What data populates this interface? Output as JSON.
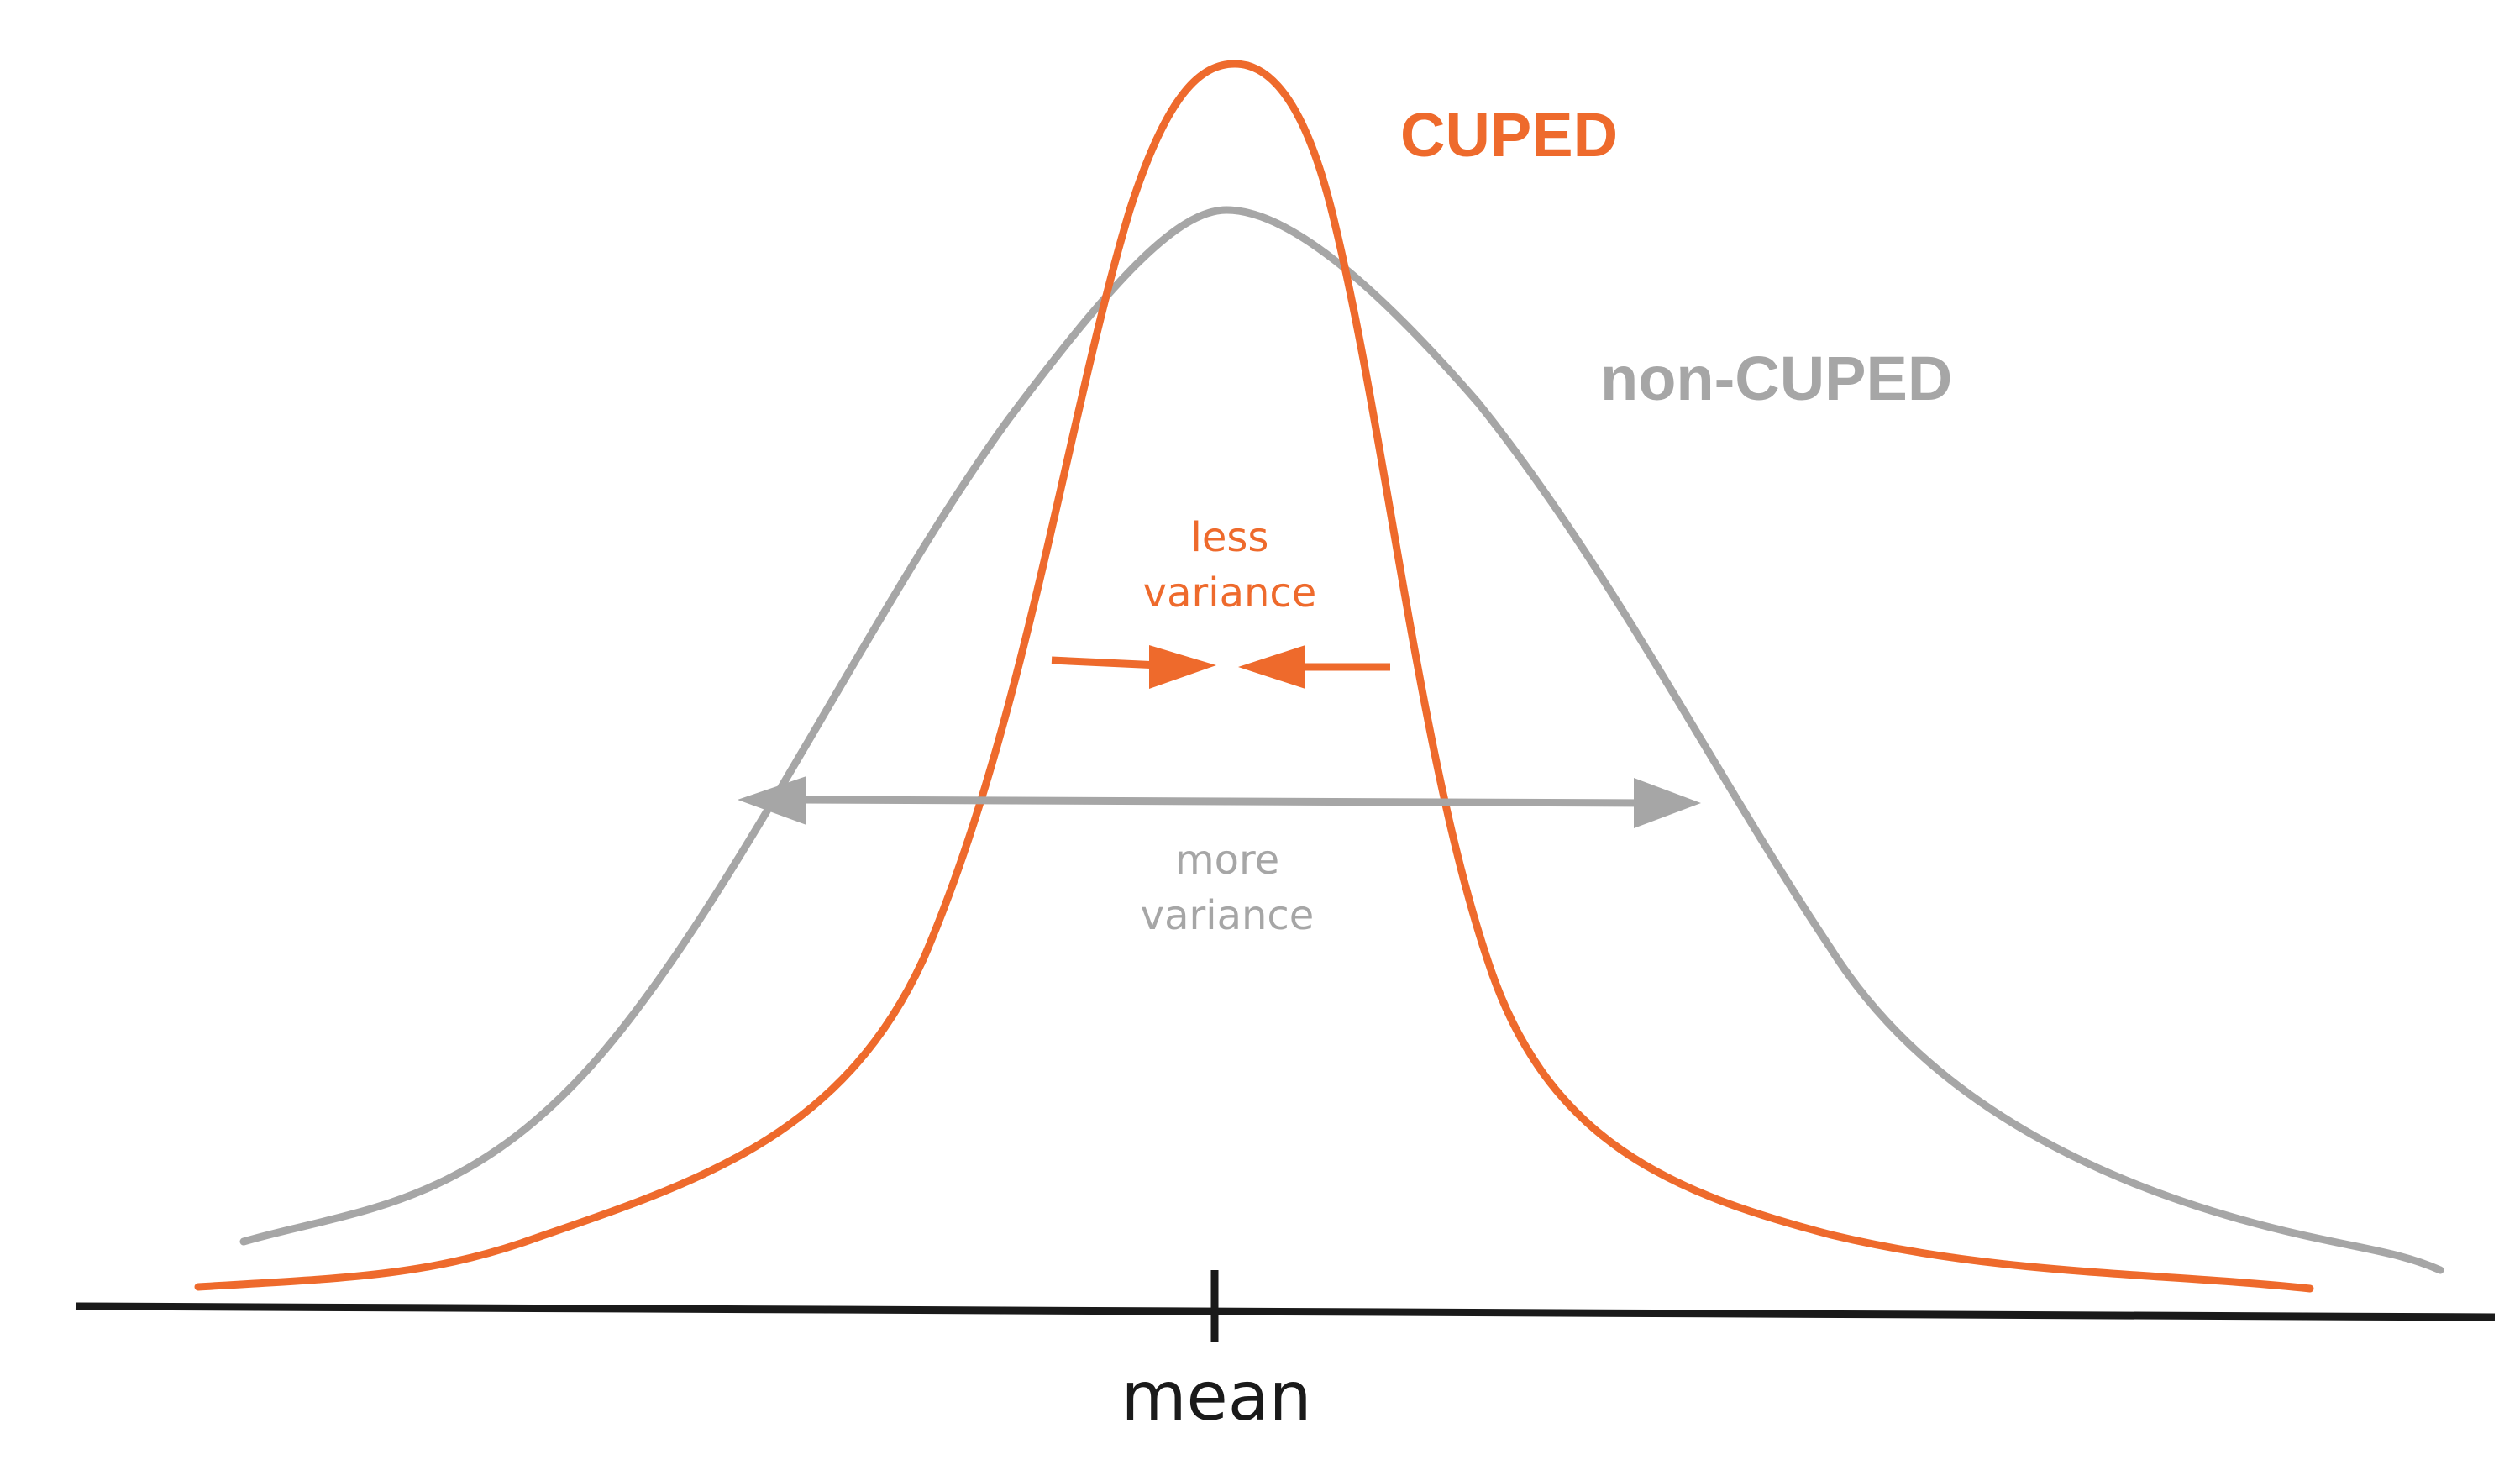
{
  "labels": {
    "cuped": "CUPED",
    "non_cuped": "non-CUPED",
    "less_variance_line1": "less",
    "less_variance_line2": "variance",
    "more_variance_line1": "more",
    "more_variance_line2": "variance",
    "mean": "mean"
  },
  "colors": {
    "cuped": "#EE6A2C",
    "non_cuped": "#A6A6A6",
    "axis": "#1A1A1A",
    "background": "#FFFFFF"
  }
}
